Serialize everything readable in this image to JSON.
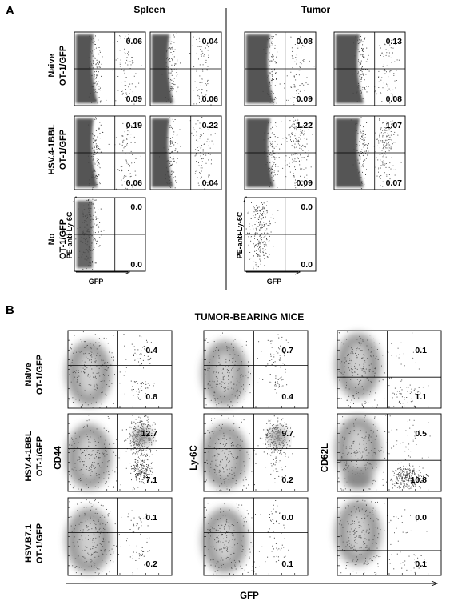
{
  "figure": {
    "panel_a": {
      "letter": "A",
      "headers": [
        "Spleen",
        "Tumor"
      ],
      "row_labels": [
        [
          "Naive",
          "OT-1/GFP"
        ],
        [
          "HSV.4-1BBL",
          "OT-1/GFP"
        ],
        [
          "No",
          "OT-1/GFP"
        ]
      ],
      "axis_labels": {
        "x": "GFP",
        "y": "PE-anti-Ly-6C"
      }
    },
    "panel_b": {
      "letter": "B",
      "title": "TUMOR-BEARING MICE",
      "row_labels": [
        [
          "Naive",
          "OT-1/GFP"
        ],
        [
          "HSV.4-1BBL",
          "OT-1/GFP"
        ],
        [
          "HSV.B7.1",
          "OT-1/GFP"
        ]
      ],
      "y_labels": [
        "CD44",
        "Ly-6C",
        "CD62L"
      ],
      "x_label": "GFP"
    }
  },
  "chart_data": [
    {
      "type": "scatter",
      "panel": "A",
      "note_columns": [
        "Spleen",
        "Spleen",
        "Tumor",
        "Tumor"
      ],
      "quadrants_upper_right": [
        [
          "0.06",
          "0.04",
          "0.08",
          "0.13"
        ],
        [
          "0.19",
          "0.22",
          "1.22",
          "1.07"
        ],
        [
          "0.0",
          null,
          "0.0",
          null
        ]
      ],
      "quadrants_lower_right": [
        [
          "0.09",
          "0.06",
          "0.09",
          "0.08"
        ],
        [
          "0.06",
          "0.04",
          "0.09",
          "0.07"
        ],
        [
          "0.0",
          null,
          "0.0",
          null
        ]
      ]
    },
    {
      "type": "scatter",
      "panel": "B",
      "columns": [
        "CD44",
        "Ly-6C",
        "CD62L"
      ],
      "quadrants_upper_right": [
        [
          "0.4",
          "0.7",
          "0.1"
        ],
        [
          "12.7",
          "9.7",
          "0.5"
        ],
        [
          "0.1",
          "0.0",
          "0.0"
        ]
      ],
      "quadrants_lower_right": [
        [
          "0.8",
          "0.4",
          "1.1"
        ],
        [
          "7.1",
          "0.2",
          "10.8"
        ],
        [
          "0.2",
          "0.1",
          "0.1"
        ]
      ]
    }
  ]
}
